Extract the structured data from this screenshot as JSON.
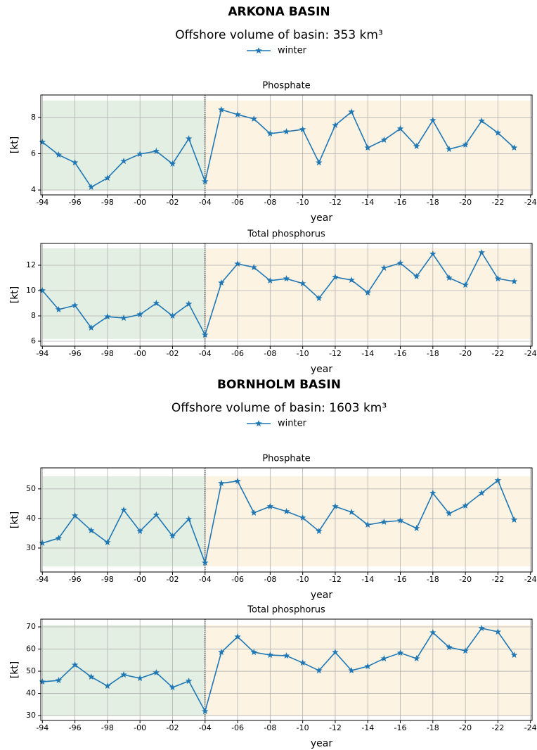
{
  "chart_data": [
    {
      "type": "line",
      "suptitle": "ARKONA BASIN",
      "subtitle": "Offshore volume of basin: 353 km³",
      "title": "Phosphate",
      "xlabel": "year",
      "ylabel": "[kt]",
      "x": [
        1994,
        1995,
        1996,
        1997,
        1998,
        1999,
        2000,
        2001,
        2002,
        2003,
        2004,
        2005,
        2006,
        2007,
        2008,
        2009,
        2010,
        2011,
        2012,
        2013,
        2014,
        2015,
        2016,
        2017,
        2018,
        2019,
        2020,
        2021,
        2022,
        2023
      ],
      "series": [
        {
          "name": "winter",
          "color": "#1f77b4",
          "values": [
            6.64,
            5.94,
            5.51,
            4.16,
            4.66,
            5.59,
            5.98,
            6.14,
            5.44,
            6.83,
            4.47,
            8.43,
            8.16,
            7.92,
            7.11,
            7.22,
            7.34,
            5.51,
            7.57,
            8.31,
            6.33,
            6.76,
            7.38,
            6.41,
            7.84,
            6.25,
            6.49,
            7.81,
            7.15,
            6.33
          ]
        }
      ],
      "xlim": [
        1993.9,
        2024.1
      ],
      "xticks": [
        {
          "value": 1994,
          "label": "-94"
        },
        {
          "value": 1996,
          "label": "-96"
        },
        {
          "value": 1998,
          "label": "-98"
        },
        {
          "value": 2000,
          "label": "-00"
        },
        {
          "value": 2002,
          "label": "-02"
        },
        {
          "value": 2004,
          "label": "-04"
        },
        {
          "value": 2006,
          "label": "-06"
        },
        {
          "value": 2008,
          "label": "-08"
        },
        {
          "value": 2010,
          "label": "-10"
        },
        {
          "value": 2012,
          "label": "-12"
        },
        {
          "value": 2014,
          "label": "-14"
        },
        {
          "value": 2016,
          "label": "-16"
        },
        {
          "value": 2018,
          "label": "-18"
        },
        {
          "value": 2020,
          "label": "-20"
        },
        {
          "value": 2022,
          "label": "-22"
        },
        {
          "value": 2024,
          "label": "-24"
        }
      ],
      "ylim": [
        3.73,
        9.24
      ],
      "yticks": [
        4,
        6,
        8
      ],
      "grid": true,
      "spans": [
        {
          "x": [
            1994,
            2004
          ],
          "color": "#e4efe3"
        },
        {
          "x": [
            2004,
            2024
          ],
          "color": "#fdf3e3"
        }
      ],
      "span_ylim": [
        4.0,
        8.93
      ],
      "divider": 2004
    },
    {
      "type": "line",
      "title": "Total phosphorus",
      "xlabel": "year",
      "ylabel": "[kt]",
      "x": [
        1994,
        1995,
        1996,
        1997,
        1998,
        1999,
        2000,
        2001,
        2002,
        2003,
        2004,
        2005,
        2006,
        2007,
        2008,
        2009,
        2010,
        2011,
        2012,
        2013,
        2014,
        2015,
        2016,
        2017,
        2018,
        2019,
        2020,
        2021,
        2022,
        2023
      ],
      "series": [
        {
          "name": "winter",
          "color": "#1f77b4",
          "values": [
            10.0,
            8.5,
            8.83,
            7.06,
            7.94,
            7.83,
            8.11,
            9.0,
            8.0,
            8.94,
            6.5,
            10.61,
            12.11,
            11.83,
            10.78,
            10.94,
            10.56,
            9.39,
            11.06,
            10.83,
            9.83,
            11.78,
            12.17,
            11.11,
            12.89,
            11.0,
            10.44,
            13.0,
            10.94,
            10.72
          ]
        }
      ],
      "xlim": [
        1993.9,
        2024.1
      ],
      "xticks": [
        {
          "value": 1994,
          "label": "-94"
        },
        {
          "value": 1996,
          "label": "-96"
        },
        {
          "value": 1998,
          "label": "-98"
        },
        {
          "value": 2000,
          "label": "-00"
        },
        {
          "value": 2002,
          "label": "-02"
        },
        {
          "value": 2004,
          "label": "-04"
        },
        {
          "value": 2006,
          "label": "-06"
        },
        {
          "value": 2008,
          "label": "-08"
        },
        {
          "value": 2010,
          "label": "-10"
        },
        {
          "value": 2012,
          "label": "-12"
        },
        {
          "value": 2014,
          "label": "-14"
        },
        {
          "value": 2016,
          "label": "-16"
        },
        {
          "value": 2018,
          "label": "-18"
        },
        {
          "value": 2020,
          "label": "-20"
        },
        {
          "value": 2022,
          "label": "-22"
        },
        {
          "value": 2024,
          "label": "-24"
        }
      ],
      "ylim": [
        5.61,
        13.72
      ],
      "yticks": [
        6,
        8,
        10,
        12
      ],
      "grid": true,
      "spans": [
        {
          "x": [
            1994,
            2004
          ],
          "color": "#e4efe3"
        },
        {
          "x": [
            2004,
            2024
          ],
          "color": "#fdf3e3"
        }
      ],
      "span_ylim": [
        6.17,
        13.33
      ],
      "divider": 2004
    },
    {
      "type": "line",
      "suptitle": "BORNHOLM BASIN",
      "subtitle": "Offshore volume of basin: 1603 km³",
      "title": "Phosphate",
      "xlabel": "year",
      "ylabel": "[kt]",
      "x": [
        1994,
        1995,
        1996,
        1997,
        1998,
        1999,
        2000,
        2001,
        2002,
        2003,
        2004,
        2005,
        2006,
        2007,
        2008,
        2009,
        2010,
        2011,
        2012,
        2013,
        2014,
        2015,
        2016,
        2017,
        2018,
        2019,
        2020,
        2021,
        2022,
        2023
      ],
      "series": [
        {
          "name": "winter",
          "color": "#1f77b4",
          "values": [
            31.67,
            33.33,
            40.95,
            35.95,
            31.9,
            42.86,
            35.7,
            41.19,
            34.05,
            39.76,
            25.0,
            51.9,
            52.62,
            41.9,
            44.05,
            42.38,
            40.24,
            35.7,
            44.05,
            42.14,
            37.86,
            38.81,
            39.29,
            36.67,
            48.57,
            41.67,
            44.29,
            48.57,
            52.86,
            39.52
          ]
        }
      ],
      "xlim": [
        1993.9,
        2024.1
      ],
      "xticks": [
        {
          "value": 1994,
          "label": "-94"
        },
        {
          "value": 1996,
          "label": "-96"
        },
        {
          "value": 1998,
          "label": "-98"
        },
        {
          "value": 2000,
          "label": "-00"
        },
        {
          "value": 2002,
          "label": "-02"
        },
        {
          "value": 2004,
          "label": "-04"
        },
        {
          "value": 2006,
          "label": "-06"
        },
        {
          "value": 2008,
          "label": "-08"
        },
        {
          "value": 2010,
          "label": "-10"
        },
        {
          "value": 2012,
          "label": "-12"
        },
        {
          "value": 2014,
          "label": "-14"
        },
        {
          "value": 2016,
          "label": "-16"
        },
        {
          "value": 2018,
          "label": "-18"
        },
        {
          "value": 2020,
          "label": "-20"
        },
        {
          "value": 2022,
          "label": "-22"
        },
        {
          "value": 2024,
          "label": "-24"
        }
      ],
      "ylim": [
        21.9,
        57.1
      ],
      "yticks": [
        30,
        40,
        50
      ],
      "grid": true,
      "spans": [
        {
          "x": [
            1994,
            2004
          ],
          "color": "#e4efe3"
        },
        {
          "x": [
            2004,
            2024
          ],
          "color": "#fdf3e3"
        }
      ],
      "span_ylim": [
        23.8,
        54.3
      ],
      "divider": 2004
    },
    {
      "type": "line",
      "title": "Total phosphorus",
      "xlabel": "year",
      "ylabel": "[kt]",
      "x": [
        1994,
        1995,
        1996,
        1997,
        1998,
        1999,
        2000,
        2001,
        2002,
        2003,
        2004,
        2005,
        2006,
        2007,
        2008,
        2009,
        2010,
        2011,
        2012,
        2013,
        2014,
        2015,
        2016,
        2017,
        2018,
        2019,
        2020,
        2021,
        2022,
        2023
      ],
      "series": [
        {
          "name": "winter",
          "color": "#1f77b4",
          "values": [
            45.24,
            45.87,
            52.86,
            47.46,
            43.33,
            48.41,
            46.83,
            49.37,
            42.7,
            45.56,
            31.9,
            58.57,
            65.56,
            58.57,
            57.3,
            56.98,
            53.81,
            50.32,
            58.57,
            50.32,
            52.22,
            55.71,
            58.25,
            55.71,
            67.46,
            60.79,
            59.21,
            69.37,
            67.78,
            57.3
          ]
        }
      ],
      "xlim": [
        1993.9,
        2024.1
      ],
      "xticks": [
        {
          "value": 1994,
          "label": "-94"
        },
        {
          "value": 1996,
          "label": "-96"
        },
        {
          "value": 1998,
          "label": "-98"
        },
        {
          "value": 2000,
          "label": "-00"
        },
        {
          "value": 2002,
          "label": "-02"
        },
        {
          "value": 2004,
          "label": "-04"
        },
        {
          "value": 2006,
          "label": "-06"
        },
        {
          "value": 2008,
          "label": "-08"
        },
        {
          "value": 2010,
          "label": "-10"
        },
        {
          "value": 2012,
          "label": "-12"
        },
        {
          "value": 2014,
          "label": "-14"
        },
        {
          "value": 2016,
          "label": "-16"
        },
        {
          "value": 2018,
          "label": "-18"
        },
        {
          "value": 2020,
          "label": "-20"
        },
        {
          "value": 2022,
          "label": "-22"
        },
        {
          "value": 2024,
          "label": "-24"
        }
      ],
      "ylim": [
        27.8,
        73.5
      ],
      "yticks": [
        30,
        40,
        50,
        60,
        70
      ],
      "grid": true,
      "spans": [
        {
          "x": [
            1994,
            2004
          ],
          "color": "#e4efe3"
        },
        {
          "x": [
            2004,
            2024
          ],
          "color": "#fdf3e3"
        }
      ],
      "span_ylim": [
        30.0,
        70.95
      ],
      "divider": 2004
    }
  ]
}
